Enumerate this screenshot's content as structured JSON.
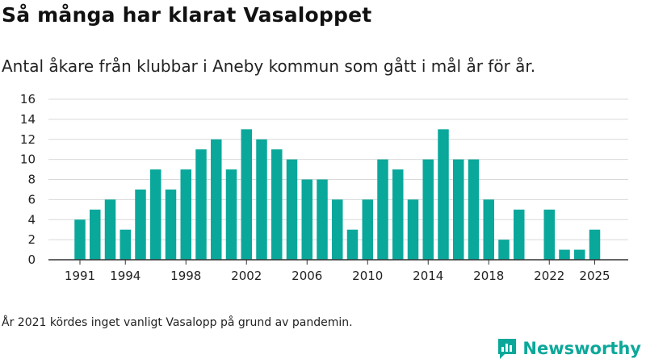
{
  "header": {
    "title": "Så många har klarat Vasaloppet",
    "subtitle": "Antal åkare från klubbar i Aneby kommun som gått i mål år för år."
  },
  "footer": {
    "note": "År 2021 kördes inget vanligt Vasalopp på grund av pandemin.",
    "brand": "Newsworthy"
  },
  "colors": {
    "bar": "#0aa89b",
    "grid": "#d9d9d9",
    "axis": "#333333"
  },
  "chart_data": {
    "type": "bar",
    "title": "Så många har klarat Vasaloppet",
    "xlabel": "",
    "ylabel": "",
    "ylim": [
      0,
      16
    ],
    "yticks": [
      0,
      2,
      4,
      6,
      8,
      10,
      12,
      14,
      16
    ],
    "xticks": [
      1991,
      1994,
      1998,
      2002,
      2006,
      2010,
      2014,
      2018,
      2022,
      2025
    ],
    "categories": [
      1991,
      1992,
      1993,
      1994,
      1995,
      1996,
      1997,
      1998,
      1999,
      2000,
      2001,
      2002,
      2003,
      2004,
      2005,
      2006,
      2007,
      2008,
      2009,
      2010,
      2011,
      2012,
      2013,
      2014,
      2015,
      2016,
      2017,
      2018,
      2019,
      2020,
      2021,
      2022,
      2023,
      2024,
      2025
    ],
    "values": [
      4,
      5,
      6,
      3,
      7,
      9,
      7,
      9,
      11,
      12,
      9,
      13,
      12,
      11,
      10,
      8,
      8,
      6,
      3,
      6,
      10,
      9,
      6,
      10,
      13,
      10,
      10,
      6,
      2,
      5,
      null,
      5,
      1,
      1,
      3
    ],
    "grid": true,
    "legend": "none"
  }
}
